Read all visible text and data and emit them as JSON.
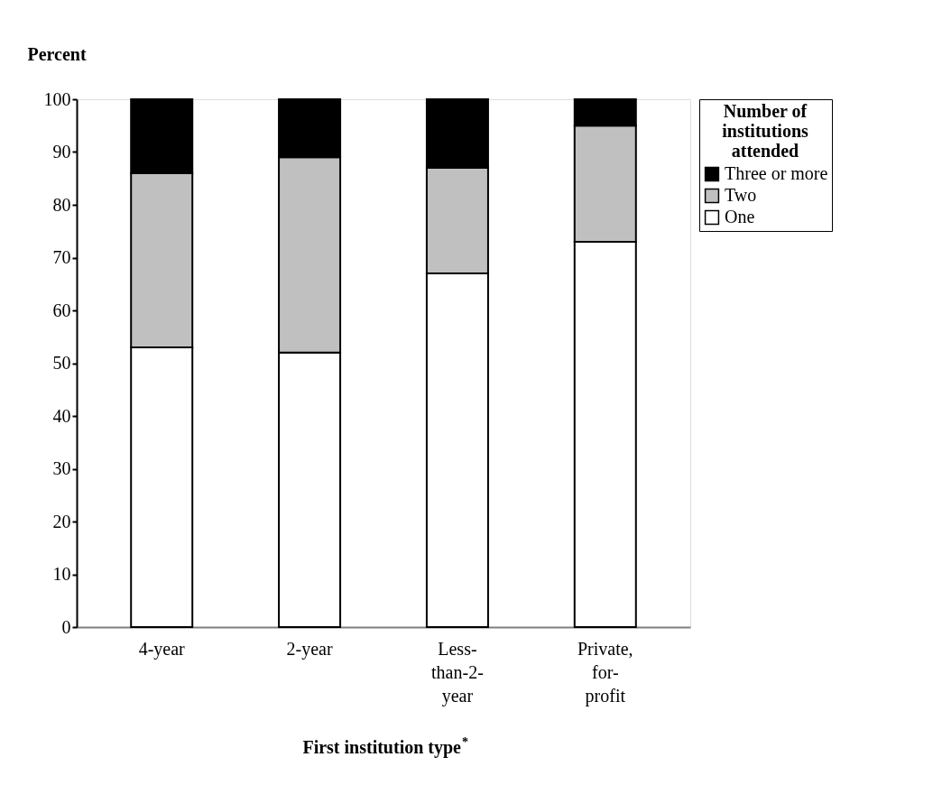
{
  "chart_data": {
    "type": "bar",
    "stacked": true,
    "xlabel": "First institution type$^{*}$",
    "ylabel": "Percent",
    "legend_title": "Number of institutions attended",
    "categories": [
      "4-year",
      "2-year",
      "Less-than-2-year",
      "Private, for-profit"
    ],
    "series": [
      {
        "name": "One",
        "color": "#ffffff",
        "values": [
          53,
          52,
          67,
          73
        ]
      },
      {
        "name": "Two",
        "color": "#c0c0c0",
        "values": [
          33,
          37,
          20,
          22
        ]
      },
      {
        "name": "Three or more",
        "color": "#000000",
        "values": [
          14,
          11,
          13,
          5
        ]
      }
    ],
    "ylim": [
      0,
      100
    ],
    "yticks": [
      0,
      10,
      20,
      30,
      40,
      50,
      60,
      70,
      80,
      90,
      100
    ],
    "grid": false,
    "legend": "right"
  }
}
